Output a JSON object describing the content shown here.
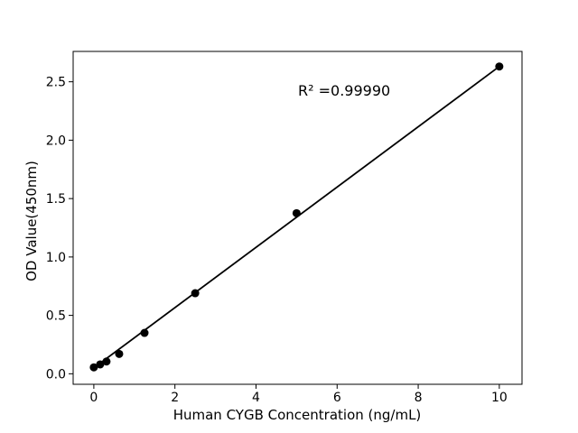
{
  "figure": {
    "background_color": "#ffffff",
    "foreground_color": "#000000"
  },
  "chart_data": {
    "type": "scatter",
    "title": "",
    "xlabel": "Human CYGB Concentration (ng/mL)",
    "ylabel": "OD Value(450nm)",
    "annotation": {
      "text": "R² =0.99990",
      "r_squared": 0.9999
    },
    "x": [
      0,
      0.156,
      0.3125,
      0.625,
      1.25,
      2.5,
      5,
      10
    ],
    "y": [
      0.055,
      0.08,
      0.105,
      0.17,
      0.35,
      0.69,
      1.375,
      2.631
    ],
    "fit_line": {
      "x": [
        0,
        10
      ],
      "y": [
        0.05,
        2.631
      ]
    },
    "xticks": [
      0,
      2,
      4,
      6,
      8,
      10
    ],
    "xtick_labels": [
      "0",
      "2",
      "4",
      "6",
      "8",
      "10"
    ],
    "yticks": [
      0.0,
      0.5,
      1.0,
      1.5,
      2.0,
      2.5
    ],
    "ytick_labels": [
      "0.0",
      "0.5",
      "1.0",
      "1.5",
      "2.0",
      "2.5"
    ],
    "xlim": [
      -0.51,
      10.56
    ],
    "ylim": [
      -0.09,
      2.76
    ],
    "grid": false,
    "legend_position": "none",
    "marker_color": "#000000",
    "line_color": "#000000",
    "marker_radius": 4.5,
    "line_width": 1.8
  }
}
